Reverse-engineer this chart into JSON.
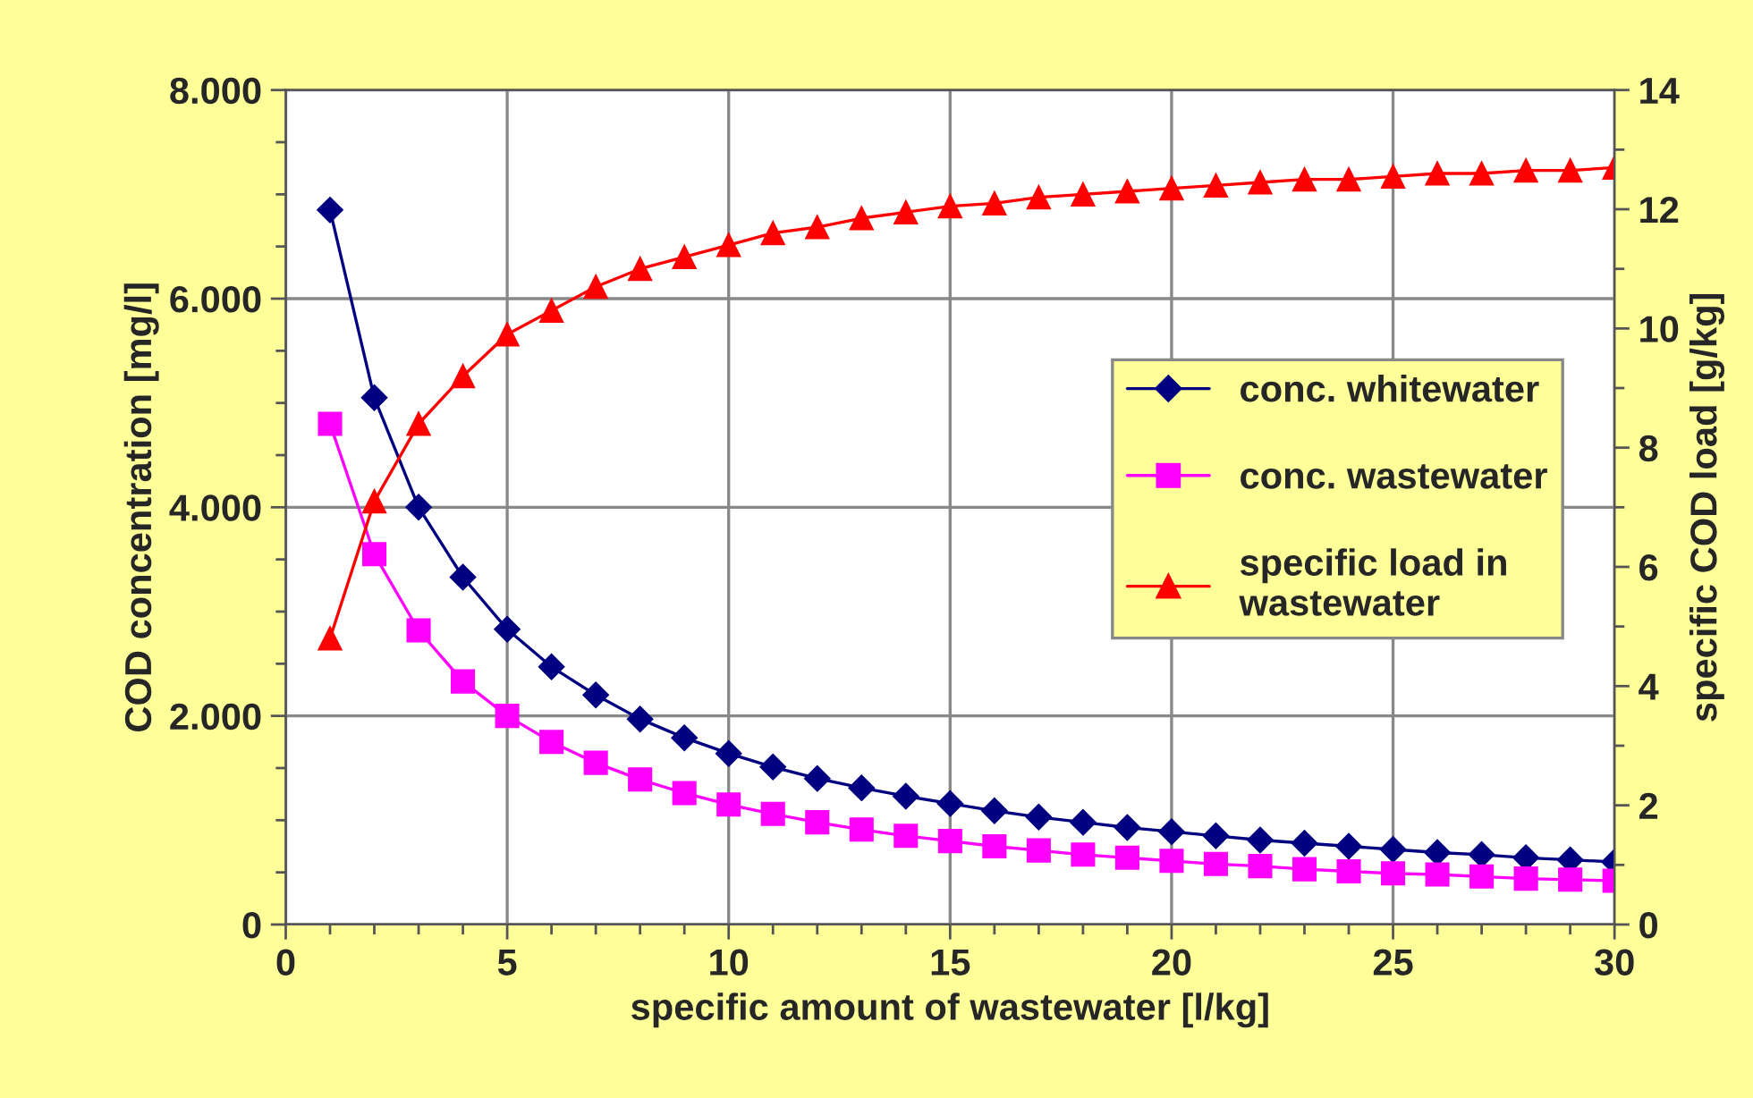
{
  "chart_data": {
    "type": "line",
    "xlabel": "specific amount of wastewater [l/kg]",
    "ylabel": "COD concentration [mg/l]",
    "y2label": "specific COD load [g/kg]",
    "x": [
      1,
      2,
      3,
      4,
      5,
      6,
      7,
      8,
      9,
      10,
      11,
      12,
      13,
      14,
      15,
      16,
      17,
      18,
      19,
      20,
      21,
      22,
      23,
      24,
      25,
      26,
      27,
      28,
      29,
      30
    ],
    "series": [
      {
        "name": "conc. whitewater",
        "color": "#000080",
        "marker": "diamond",
        "values": [
          6850,
          5050,
          4000,
          3330,
          2830,
          2470,
          2200,
          1970,
          1790,
          1640,
          1510,
          1400,
          1310,
          1230,
          1160,
          1090,
          1030,
          980,
          930,
          890,
          850,
          810,
          780,
          750,
          720,
          690,
          670,
          640,
          620,
          600
        ]
      },
      {
        "name": "conc. wastewater",
        "color": "#ff00ff",
        "marker": "square",
        "values": [
          4800,
          3550,
          2820,
          2330,
          2000,
          1750,
          1550,
          1390,
          1260,
          1150,
          1060,
          980,
          910,
          850,
          800,
          750,
          710,
          670,
          640,
          610,
          580,
          560,
          530,
          510,
          490,
          480,
          460,
          440,
          430,
          420
        ]
      },
      {
        "name": "specific load in\nwastewater",
        "color": "#ff0000",
        "marker": "triangle",
        "axis": "y2",
        "values": [
          4.8,
          7.1,
          8.4,
          9.2,
          9.9,
          10.3,
          10.7,
          11.0,
          11.2,
          11.4,
          11.6,
          11.7,
          11.85,
          11.95,
          12.05,
          12.1,
          12.2,
          12.25,
          12.3,
          12.35,
          12.4,
          12.45,
          12.5,
          12.5,
          12.55,
          12.6,
          12.6,
          12.65,
          12.65,
          12.7
        ]
      }
    ],
    "xlim": [
      0,
      30
    ],
    "xticks": [
      0,
      {
        "value": 1,
        "label": null
      },
      {
        "value": 2,
        "label": null
      },
      {
        "value": 3,
        "label": null
      },
      {
        "value": 4,
        "label": null
      },
      5,
      {
        "value": 6,
        "label": null
      },
      {
        "value": 7,
        "label": null
      },
      {
        "value": 8,
        "label": null
      },
      {
        "value": 9,
        "label": null
      },
      10,
      {
        "value": 11,
        "label": null
      },
      {
        "value": 12,
        "label": null
      },
      {
        "value": 13,
        "label": null
      },
      {
        "value": 14,
        "label": null
      },
      15,
      {
        "value": 16,
        "label": null
      },
      {
        "value": 17,
        "label": null
      },
      {
        "value": 18,
        "label": null
      },
      {
        "value": 19,
        "label": null
      },
      20,
      {
        "value": 21,
        "label": null
      },
      {
        "value": 22,
        "label": null
      },
      {
        "value": 23,
        "label": null
      },
      {
        "value": 24,
        "label": null
      },
      25,
      {
        "value": 26,
        "label": null
      },
      {
        "value": 27,
        "label": null
      },
      {
        "value": 28,
        "label": null
      },
      {
        "value": 29,
        "label": null
      },
      30
    ],
    "ylim": [
      0,
      8000
    ],
    "yticks": [
      0,
      {
        "value": 500,
        "label": null
      },
      {
        "value": 1000,
        "label": null
      },
      {
        "value": 1500,
        "label": null
      },
      {
        "value": 2000,
        "label": "2.000"
      },
      {
        "value": 2500,
        "label": null
      },
      {
        "value": 3000,
        "label": null
      },
      {
        "value": 3500,
        "label": null
      },
      {
        "value": 4000,
        "label": "4.000"
      },
      {
        "value": 4500,
        "label": null
      },
      {
        "value": 5000,
        "label": null
      },
      {
        "value": 5500,
        "label": null
      },
      {
        "value": 6000,
        "label": "6.000"
      },
      {
        "value": 6500,
        "label": null
      },
      {
        "value": 7000,
        "label": null
      },
      {
        "value": 7500,
        "label": null
      },
      {
        "value": 8000,
        "label": "8.000"
      }
    ],
    "y2lim": [
      0,
      14
    ],
    "y2ticks": [
      0,
      {
        "value": 1,
        "label": null
      },
      2,
      {
        "value": 3,
        "label": null
      },
      4,
      {
        "value": 5,
        "label": null
      },
      6,
      {
        "value": 7,
        "label": null
      },
      8,
      {
        "value": 9,
        "label": null
      },
      10,
      {
        "value": 11,
        "label": null
      },
      12,
      {
        "value": 13,
        "label": null
      },
      14
    ],
    "grid": true,
    "legend": "right",
    "line_style": "solid"
  }
}
